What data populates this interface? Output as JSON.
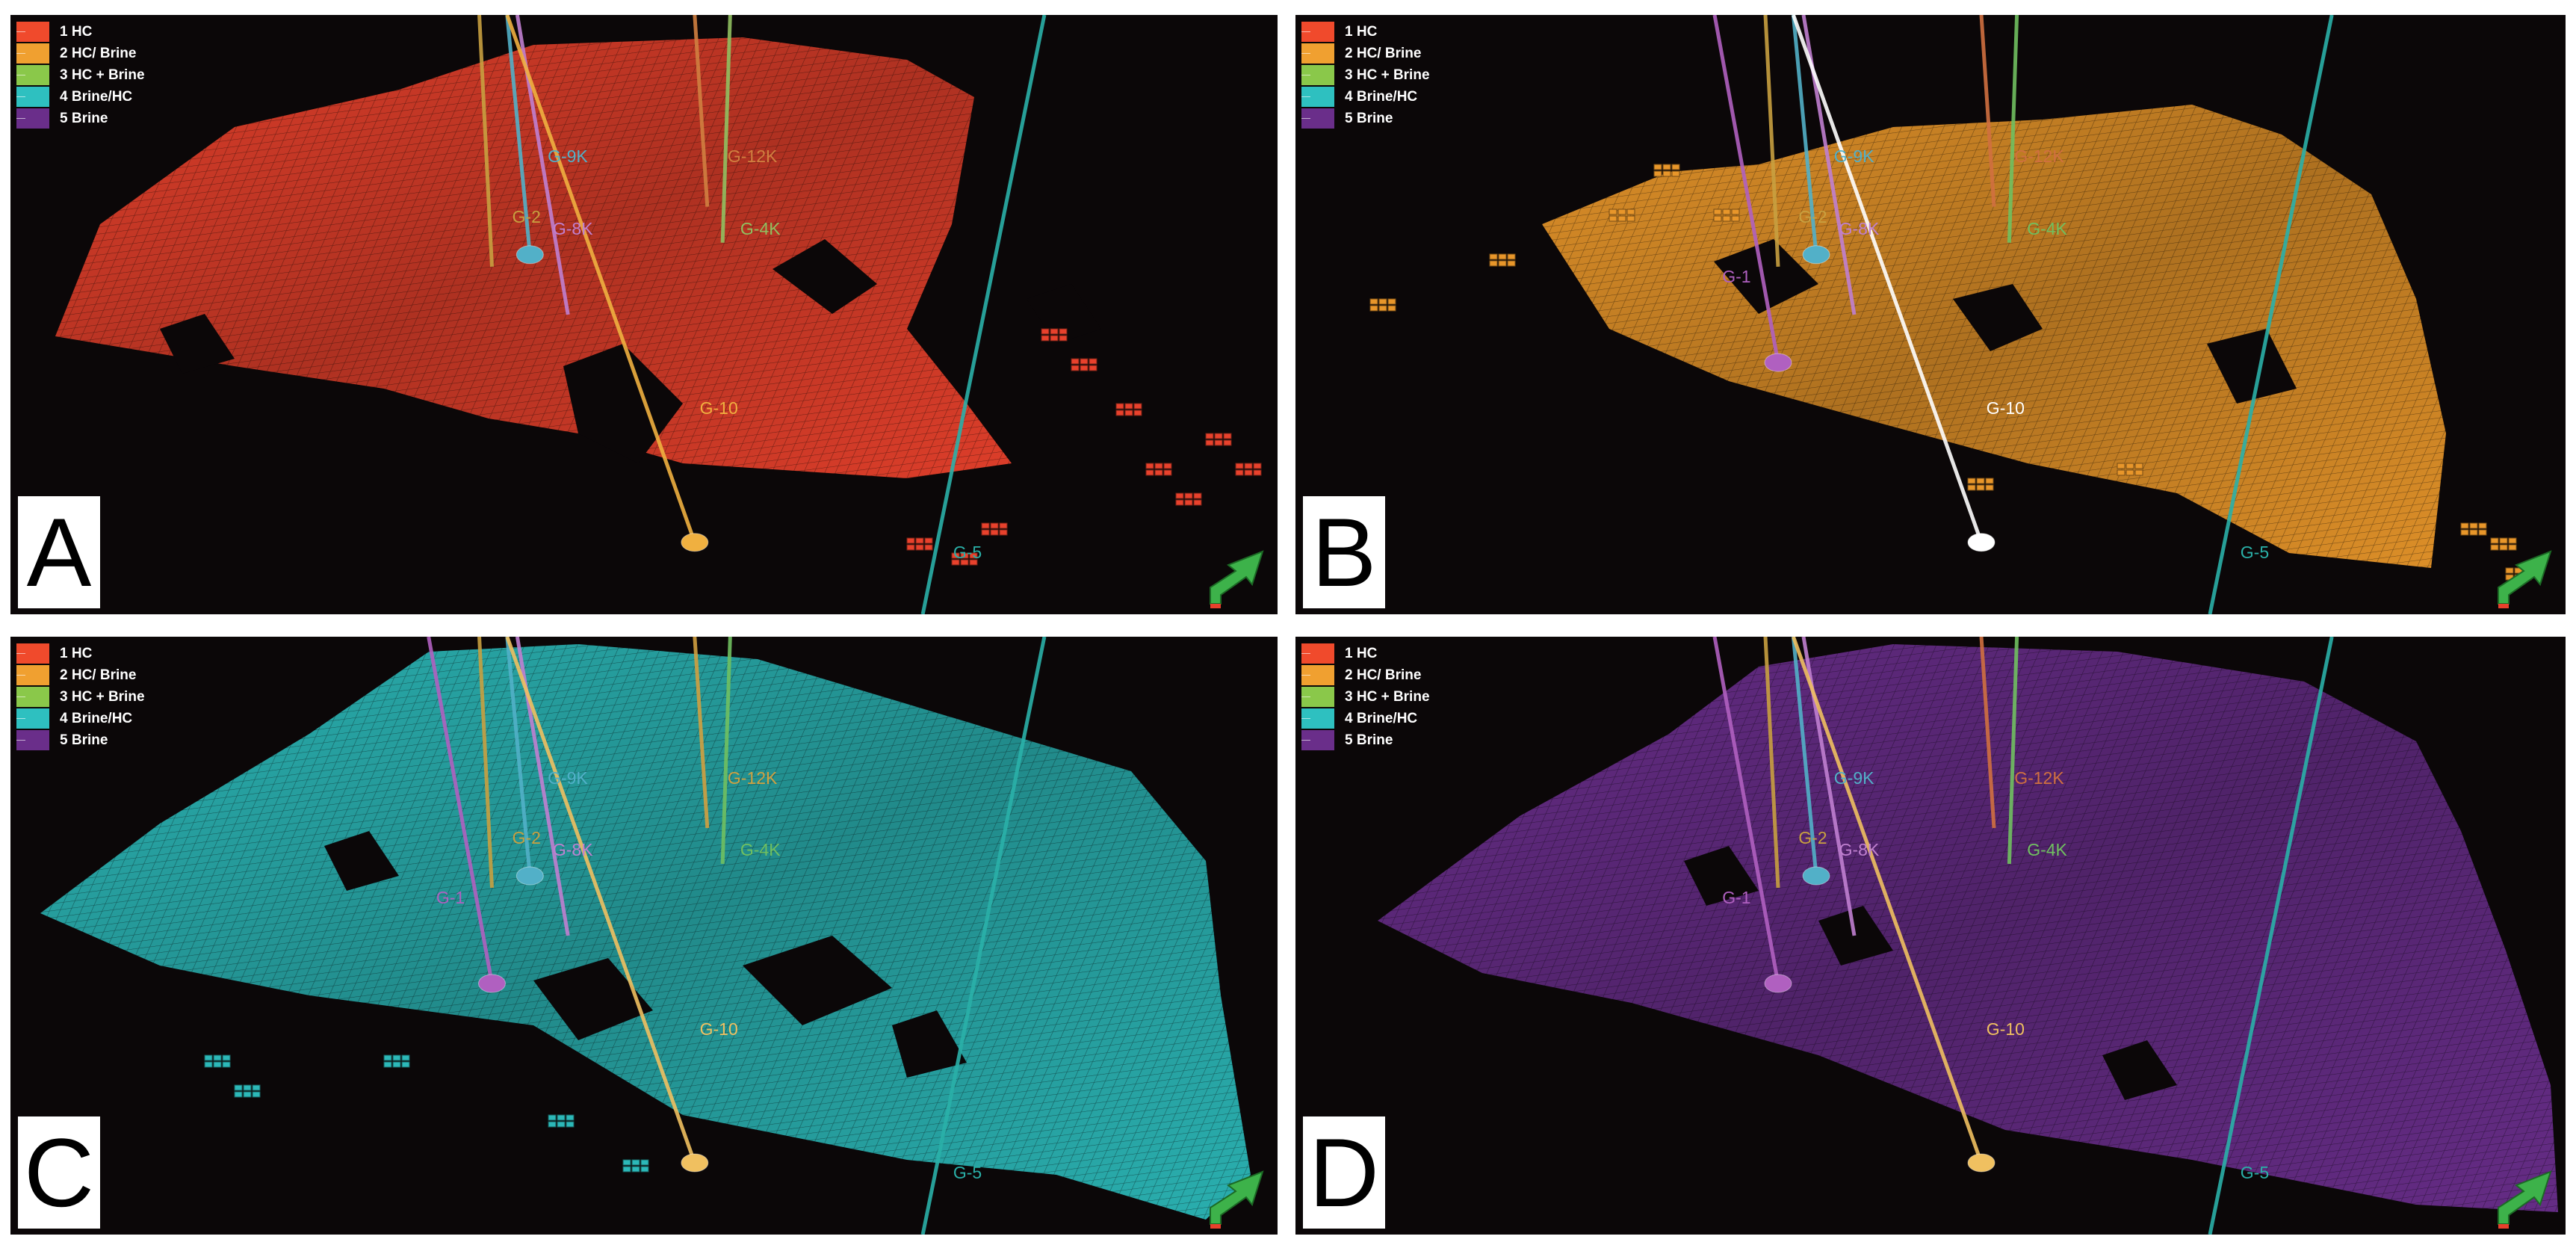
{
  "legend": {
    "items": [
      {
        "label": "1 HC",
        "color": "#f04a2c"
      },
      {
        "label": "2 HC/ Brine",
        "color": "#f0a030"
      },
      {
        "label": "3 HC + Brine",
        "color": "#8ac84a"
      },
      {
        "label": "4 Brine/HC",
        "color": "#2ec0c0"
      },
      {
        "label": "5 Brine",
        "color": "#6a2e8a"
      }
    ]
  },
  "panels": [
    {
      "letter": "A",
      "surface_color": "#e8412c",
      "wells": [
        {
          "id": "g9k",
          "label": "G-9K",
          "color": "#52b0c8"
        },
        {
          "id": "g2",
          "label": "G-2",
          "color": "#c8a040"
        },
        {
          "id": "g8k",
          "label": "G-8K",
          "color": "#c080d0"
        },
        {
          "id": "g12k",
          "label": "G-12K",
          "color": "#d08040"
        },
        {
          "id": "g4k",
          "label": "G-4K",
          "color": "#90c060"
        },
        {
          "id": "g10",
          "label": "G-10",
          "color": "#f0b040"
        },
        {
          "id": "g5",
          "label": "G-5",
          "color": "#2ab0a8"
        }
      ]
    },
    {
      "letter": "B",
      "surface_color": "#e8962a",
      "wells": [
        {
          "id": "g9k",
          "label": "G-9K",
          "color": "#52b0c8"
        },
        {
          "id": "g12k",
          "label": "G-12K",
          "color": "#d07040"
        },
        {
          "id": "g2",
          "label": "G-2",
          "color": "#c8a040"
        },
        {
          "id": "g8k",
          "label": "G-8K",
          "color": "#c080d0"
        },
        {
          "id": "g4k",
          "label": "G-4K",
          "color": "#70c060"
        },
        {
          "id": "g1",
          "label": "G-1",
          "color": "#b060c0"
        },
        {
          "id": "g10",
          "label": "G-10",
          "color": "#ffffff"
        },
        {
          "id": "g5",
          "label": "G-5",
          "color": "#2ab0a8"
        }
      ]
    },
    {
      "letter": "C",
      "surface_color": "#2cb8b8",
      "wells": [
        {
          "id": "g9k",
          "label": "G-9K",
          "color": "#52b0c8"
        },
        {
          "id": "g12k",
          "label": "G-12K",
          "color": "#d0a040"
        },
        {
          "id": "g2",
          "label": "G-2",
          "color": "#c8a040"
        },
        {
          "id": "g8k",
          "label": "G-8K",
          "color": "#c080d0"
        },
        {
          "id": "g4k",
          "label": "G-4K",
          "color": "#70c060"
        },
        {
          "id": "g1",
          "label": "G-1",
          "color": "#b060c0"
        },
        {
          "id": "g10",
          "label": "G-10",
          "color": "#f0c060"
        },
        {
          "id": "g5",
          "label": "G-5",
          "color": "#2ab0a8"
        }
      ]
    },
    {
      "letter": "D",
      "surface_color": "#6a2e8c",
      "wells": [
        {
          "id": "g9k",
          "label": "G-9K",
          "color": "#52b0c8"
        },
        {
          "id": "g12k",
          "label": "G-12K",
          "color": "#d07040"
        },
        {
          "id": "g2",
          "label": "G-2",
          "color": "#c8a040"
        },
        {
          "id": "g8k",
          "label": "G-8K",
          "color": "#c080d0"
        },
        {
          "id": "g4k",
          "label": "G-4K",
          "color": "#70c060"
        },
        {
          "id": "g1",
          "label": "G-1",
          "color": "#b060c0"
        },
        {
          "id": "g10",
          "label": "G-10",
          "color": "#f0c060"
        },
        {
          "id": "g5",
          "label": "G-5",
          "color": "#2ab0a8"
        }
      ]
    }
  ]
}
